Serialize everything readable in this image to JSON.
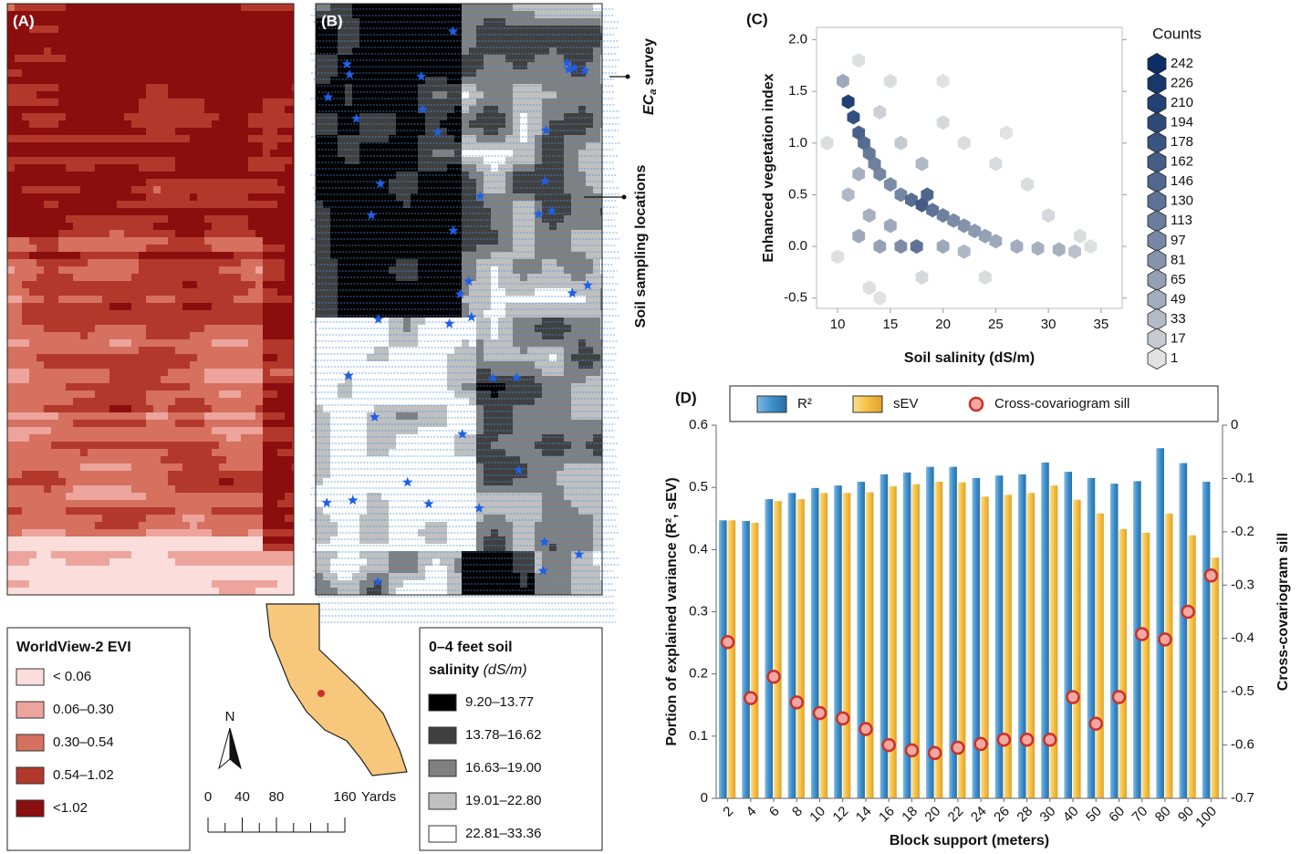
{
  "panel_labels": [
    "(A)",
    "(B)",
    "(C)",
    "(D)"
  ],
  "map_a": {
    "legend_title": "WorldView-2 EVI",
    "classes": [
      {
        "label": "< 0.06",
        "color": "#fbdedc"
      },
      {
        "label": "0.06–0.30",
        "color": "#eda49c"
      },
      {
        "label": "0.30–0.54",
        "color": "#d6705f"
      },
      {
        "label": "0.54–1.02",
        "color": "#b3382c"
      },
      {
        "label": "<1.02",
        "color": "#8b0e0e"
      }
    ]
  },
  "map_b": {
    "legend_title": [
      "0–4 feet soil",
      "salinity"
    ],
    "legend_unit": "(dS/m)",
    "classes": [
      {
        "label": "9.20–13.77",
        "color": "#000000"
      },
      {
        "label": "13.78–16.62",
        "color": "#404040"
      },
      {
        "label": "16.63–19.00",
        "color": "#808080"
      },
      {
        "label": "19.01–22.80",
        "color": "#c0c0c0"
      },
      {
        "label": "22.81–33.36",
        "color": "#ffffff"
      }
    ],
    "survey_label": "EC",
    "survey_subscript": "a",
    "survey_suffix": "survey",
    "sampling_label": "Soil sampling locations"
  },
  "inset": {
    "north": "N",
    "scale_ticks": [
      0,
      40,
      80,
      160
    ],
    "scale_unit": "Yards"
  },
  "chart_data": [
    {
      "type": "hexbin",
      "xlabel": "Soil salinity (dS/m)",
      "ylabel": "Enhanced vegetation index",
      "xlim": [
        8,
        37
      ],
      "ylim": [
        -0.6,
        2.12
      ],
      "xticks": [
        10,
        15,
        20,
        25,
        30,
        35
      ],
      "yticks": [
        -0.5,
        {
          "value": 0,
          "label": "0.0"
        },
        0.5,
        {
          "value": 1,
          "label": "1.0"
        },
        1.5,
        {
          "value": 2,
          "label": "2.0"
        }
      ],
      "x": [
        11,
        11.5,
        12,
        12.5,
        13,
        13.5,
        14,
        15,
        16,
        17,
        18,
        18.5,
        19,
        20,
        21,
        22,
        23,
        24,
        25,
        27,
        29,
        31,
        32.5,
        17.5,
        16,
        14,
        12,
        11,
        12,
        10.5,
        20,
        22,
        15,
        13,
        18,
        16,
        14,
        20,
        25,
        28,
        30,
        33,
        12,
        15,
        22,
        26,
        18,
        13,
        24,
        34,
        9,
        10,
        20,
        14
      ],
      "y": [
        1.4,
        1.25,
        1.1,
        1.0,
        0.9,
        0.8,
        0.7,
        0.6,
        0.5,
        0.45,
        0.4,
        0.5,
        0.35,
        0.3,
        0.25,
        0.2,
        0.15,
        0.1,
        0.05,
        0.0,
        -0.02,
        -0.03,
        -0.05,
        0.0,
        0.0,
        0.0,
        0.1,
        0.5,
        0.7,
        1.6,
        0.0,
        -0.05,
        0.2,
        0.3,
        0.8,
        1.0,
        1.3,
        1.2,
        0.8,
        0.6,
        0.3,
        0.1,
        1.8,
        1.6,
        1.0,
        1.1,
        -0.3,
        -0.4,
        -0.3,
        0.0,
        1.0,
        -0.1,
        1.6,
        -0.5
      ],
      "counts": [
        230,
        200,
        170,
        150,
        130,
        120,
        110,
        100,
        110,
        150,
        180,
        160,
        140,
        120,
        100,
        90,
        80,
        70,
        60,
        55,
        50,
        50,
        30,
        140,
        100,
        70,
        60,
        40,
        50,
        60,
        60,
        40,
        60,
        50,
        40,
        20,
        15,
        8,
        6,
        5,
        8,
        5,
        3,
        5,
        5,
        2,
        8,
        3,
        5,
        3,
        4,
        3,
        2,
        2
      ],
      "legend_title": "Counts",
      "legend_ticks": [
        242,
        226,
        210,
        194,
        178,
        162,
        146,
        130,
        113,
        97,
        81,
        65,
        49,
        33,
        17,
        1
      ],
      "color_low": "#e2e2e2",
      "color_high": "#0d2f66"
    },
    {
      "type": "bar",
      "xlabel": "Block support (meters)",
      "ylabel": "Portion of explained variance (R², sEV)",
      "y2label": "Cross-covariogram sill",
      "categories": [
        "2",
        "4",
        "6",
        "8",
        "10",
        "12",
        "14",
        "16",
        "18",
        "20",
        "22",
        "24",
        "26",
        "28",
        "30",
        "40",
        "50",
        "60",
        "70",
        "80",
        "90",
        "100"
      ],
      "ylim": [
        0,
        0.6
      ],
      "yticks": [
        0,
        0.1,
        0.2,
        0.3,
        0.4,
        0.5,
        0.6
      ],
      "y2lim": [
        -0.7,
        0
      ],
      "y2ticks": [
        0,
        -0.1,
        -0.2,
        -0.3,
        -0.4,
        -0.5,
        -0.6,
        -0.7
      ],
      "series": [
        {
          "name": "R²",
          "color": "#3d8fcb",
          "values": [
            0.447,
            0.446,
            0.481,
            0.491,
            0.499,
            0.503,
            0.509,
            0.521,
            0.524,
            0.533,
            0.533,
            0.515,
            0.519,
            0.521,
            0.54,
            0.525,
            0.515,
            0.506,
            0.51,
            0.563,
            0.539,
            0.509
          ]
        },
        {
          "name": "sEV",
          "color": "#f5bf45",
          "values": [
            0.447,
            0.443,
            0.478,
            0.481,
            0.491,
            0.491,
            0.492,
            0.502,
            0.505,
            0.509,
            0.508,
            0.485,
            0.488,
            0.491,
            0.503,
            0.48,
            0.458,
            0.433,
            0.427,
            0.458,
            0.423,
            0.387
          ]
        },
        {
          "name": "Cross-covariogram sill",
          "color": "#f3a7a0",
          "axis": "y2",
          "values": [
            -0.407,
            -0.512,
            -0.472,
            -0.52,
            -0.54,
            -0.55,
            -0.57,
            -0.6,
            -0.61,
            -0.615,
            -0.605,
            -0.598,
            -0.59,
            -0.59,
            -0.59,
            -0.51,
            -0.56,
            -0.51,
            -0.392,
            -0.402,
            -0.35,
            -0.282
          ]
        }
      ]
    }
  ]
}
